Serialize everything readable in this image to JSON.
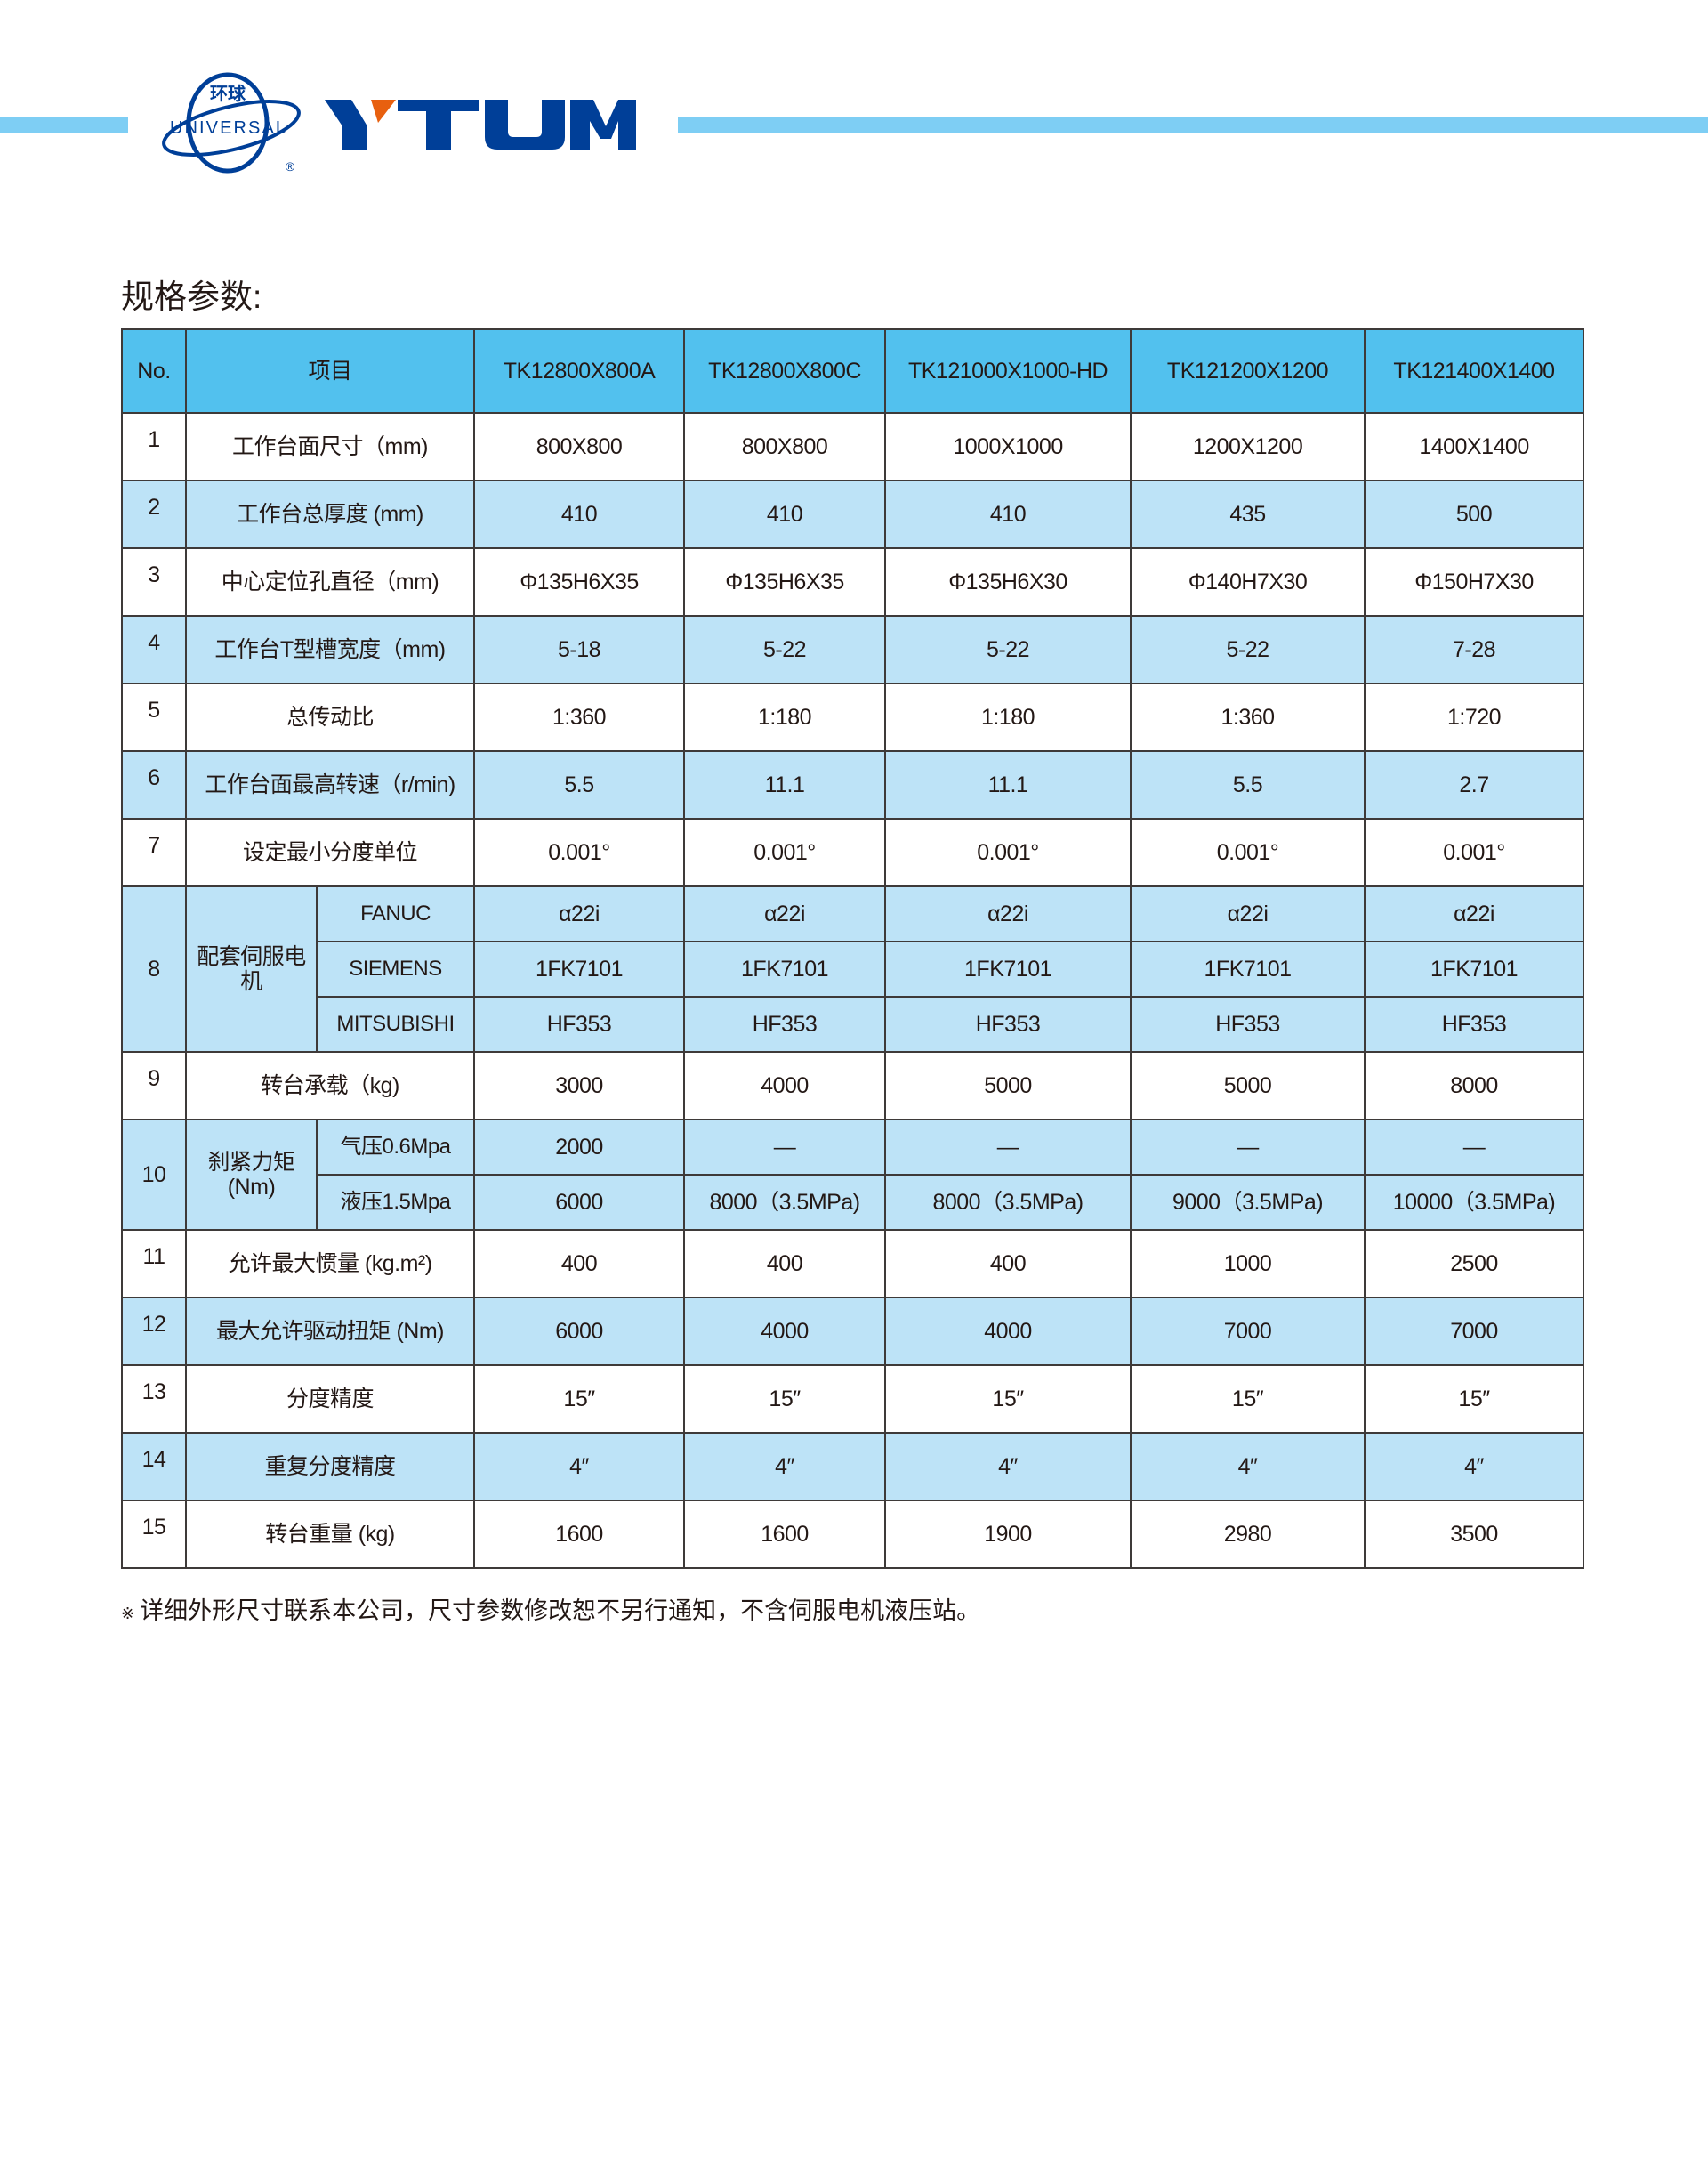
{
  "brand": {
    "logo_cn": "环球",
    "logo_en": "UNIVERSAL",
    "logo_reg": "®",
    "wordmark": "YTUM",
    "colors": {
      "bar": "#7ecef4",
      "logo_blue": "#003f98",
      "logo_orange": "#e8600f",
      "header": "#52c1ee",
      "row_alt": "#bde3f7"
    }
  },
  "title": "规格参数:",
  "table": {
    "headers": [
      "No.",
      "项目",
      "TK12800X800A",
      "TK12800X800C",
      "TK121000X1000-HD",
      "TK121200X1200",
      "TK121400X1400"
    ],
    "rows": [
      {
        "no": "1",
        "item": "工作台面尺寸（mm)",
        "values": [
          "800X800",
          "800X800",
          "1000X1000",
          "1200X1200",
          "1400X1400"
        ]
      },
      {
        "no": "2",
        "item": "工作台总厚度 (mm)",
        "values": [
          "410",
          "410",
          "410",
          "435",
          "500"
        ]
      },
      {
        "no": "3",
        "item": "中心定位孔直径（mm)",
        "values": [
          "Φ135H6X35",
          "Φ135H6X35",
          "Φ135H6X30",
          "Φ140H7X30",
          "Φ150H7X30"
        ]
      },
      {
        "no": "4",
        "item": "工作台T型槽宽度（mm)",
        "values": [
          "5-18",
          "5-22",
          "5-22",
          "5-22",
          "7-28"
        ]
      },
      {
        "no": "5",
        "item": "总传动比",
        "values": [
          "1:360",
          "1:180",
          "1:180",
          "1:360",
          "1:720"
        ]
      },
      {
        "no": "6",
        "item": "工作台面最高转速（r/min)",
        "values": [
          "5.5",
          "11.1",
          "11.1",
          "5.5",
          "2.7"
        ]
      },
      {
        "no": "7",
        "item": "设定最小分度单位",
        "values": [
          "0.001°",
          "0.001°",
          "0.001°",
          "0.001°",
          "0.001°"
        ]
      },
      {
        "no": "8",
        "item": "配套伺服电机",
        "sub": [
          {
            "label": "FANUC",
            "values": [
              "α22i",
              "α22i",
              "α22i",
              "α22i",
              "α22i"
            ]
          },
          {
            "label": "SIEMENS",
            "values": [
              "1FK7101",
              "1FK7101",
              "1FK7101",
              "1FK7101",
              "1FK7101"
            ]
          },
          {
            "label": "MITSUBISHI",
            "values": [
              "HF353",
              "HF353",
              "HF353",
              "HF353",
              "HF353"
            ]
          }
        ]
      },
      {
        "no": "9",
        "item": "转台承载（kg)",
        "values": [
          "3000",
          "4000",
          "5000",
          "5000",
          "8000"
        ]
      },
      {
        "no": "10",
        "item": "刹紧力矩 (Nm)",
        "sub": [
          {
            "label": "气压0.6Mpa",
            "values": [
              "2000",
              "—",
              "—",
              "—",
              "—"
            ]
          },
          {
            "label": "液压1.5Mpa",
            "values": [
              "6000",
              "8000（3.5MPa)",
              "8000（3.5MPa)",
              "9000（3.5MPa)",
              "10000（3.5MPa)"
            ]
          }
        ]
      },
      {
        "no": "11",
        "item": "允许最大惯量 (kg.m²)",
        "values": [
          "400",
          "400",
          "400",
          "1000",
          "2500"
        ]
      },
      {
        "no": "12",
        "item": "最大允许驱动扭矩 (Nm)",
        "values": [
          "6000",
          "4000",
          "4000",
          "7000",
          "7000"
        ]
      },
      {
        "no": "13",
        "item": "分度精度",
        "values": [
          "15″",
          "15″",
          "15″",
          "15″",
          "15″"
        ]
      },
      {
        "no": "14",
        "item": "重复分度精度",
        "values": [
          "4″",
          "4″",
          "4″",
          "4″",
          "4″"
        ]
      },
      {
        "no": "15",
        "item": "转台重量 (kg)",
        "values": [
          "1600",
          "1600",
          "1900",
          "2980",
          "3500"
        ]
      }
    ]
  },
  "note": {
    "mark": "※",
    "text": "详细外形尺寸联系本公司，尺寸参数修改恕不另行通知，不含伺服电机液压站。"
  }
}
